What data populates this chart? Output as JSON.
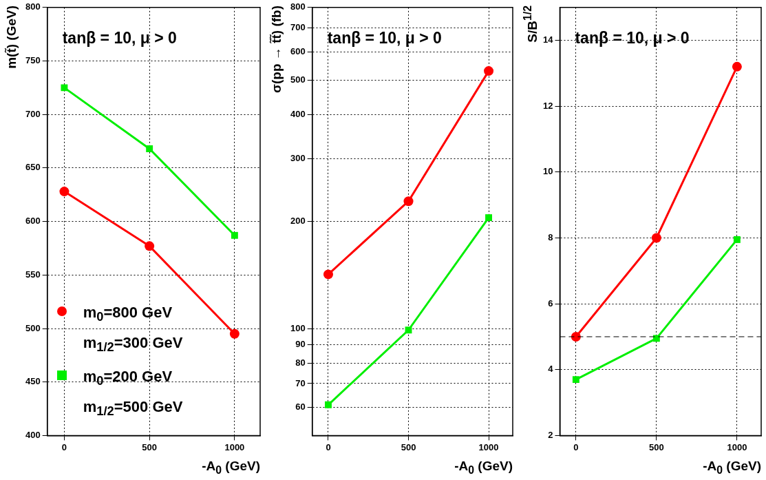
{
  "chart_data": [
    {
      "type": "line",
      "xlabel": "-A$_{0}$ (GeV)",
      "ylabel": "m(t̃) (GeV)",
      "x": [
        0,
        500,
        1000
      ],
      "xlim": [
        -100,
        1150
      ],
      "xticks": [
        0,
        500,
        1000
      ],
      "ylim": [
        400,
        800
      ],
      "yticks": [
        400,
        450,
        500,
        550,
        600,
        650,
        700,
        750,
        800
      ],
      "grid": true,
      "legend": "bottom left",
      "annotations": [
        "tanβ = 10, μ > 0"
      ],
      "series": [
        {
          "name": "m$_{0}$=800 GeV m$_{1/2}$=300 GeV",
          "color": "#ff0000",
          "marker": "circle",
          "values": [
            628,
            577,
            495
          ]
        },
        {
          "name": "m$_{0}$=200 GeV m$_{1/2}$=500 GeV",
          "color": "#00ee00",
          "marker": "square",
          "values": [
            725,
            668,
            587
          ]
        }
      ]
    },
    {
      "type": "line",
      "xlabel": "-A$_{0}$ (GeV)",
      "ylabel": "σ(pp → t̃t̃) (fb)",
      "x": [
        0,
        500,
        1000
      ],
      "xlim": [
        -100,
        1150
      ],
      "xticks": [
        0,
        500,
        1000
      ],
      "ylim": [
        50,
        800
      ],
      "yticks": [
        60,
        70,
        80,
        90,
        100,
        200,
        300,
        400,
        500,
        600,
        700,
        800
      ],
      "log": true,
      "grid": true,
      "annotations": [
        "tanβ = 10, μ > 0"
      ],
      "series": [
        {
          "color": "#ff0000",
          "marker": "circle",
          "values": [
            142,
            228,
            530
          ]
        },
        {
          "color": "#00ee00",
          "marker": "square",
          "values": [
            61,
            99,
            205
          ]
        }
      ]
    },
    {
      "type": "line",
      "xlabel": "-A$_{0}$ (GeV)",
      "ylabel": "S/B$^{1/2}$",
      "x": [
        0,
        500,
        1000
      ],
      "xlim": [
        -100,
        1150
      ],
      "xticks": [
        0,
        500,
        1000
      ],
      "ylim": [
        2,
        15
      ],
      "yticks": [
        2,
        4,
        6,
        8,
        10,
        12,
        14
      ],
      "grid": true,
      "annotations": [
        "tanβ = 10, μ > 0"
      ],
      "ref_lines": [
        {
          "axis": "y",
          "value": 5,
          "color": "#000000",
          "line_style": "dashed"
        }
      ],
      "series": [
        {
          "color": "#ff0000",
          "marker": "circle",
          "values": [
            5.0,
            8.0,
            13.2
          ]
        },
        {
          "color": "#00ee00",
          "marker": "square",
          "values": [
            3.7,
            4.95,
            7.95
          ]
        }
      ]
    }
  ]
}
